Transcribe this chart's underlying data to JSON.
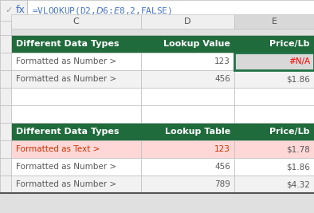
{
  "formula_bar_text": "=VLOOKUP(D2,$D$6:$E$8,2,FALSE)",
  "col_labels": [
    "C",
    "D",
    "E"
  ],
  "header_bg": "#206B3C",
  "header_fg": "#FFFFFF",
  "cell_bg_white": "#FFFFFF",
  "cell_bg_gray": "#F2F2F2",
  "selected_cell_bg": "#D8D8D8",
  "pink_bg": "#FFD7D7",
  "top_table": {
    "header": [
      "Different Data Types",
      "Lookup Value",
      "Price/Lb"
    ],
    "rows": [
      [
        "Formatted as Number >",
        "123",
        "#N/A"
      ],
      [
        "Formatted as Number >",
        "456",
        "$1.86"
      ]
    ],
    "row_bgs": [
      "#FFFFFF",
      "#F2F2F2"
    ],
    "na_color": "#FF0000",
    "na_cell_bg": "#D8D8D8",
    "normal_text": "#595959"
  },
  "bottom_table": {
    "header": [
      "Different Data Types",
      "Lookup Table",
      "Price/Lb"
    ],
    "rows": [
      [
        "Formatted as Text >",
        "123",
        "$1.78"
      ],
      [
        "Formatted as Number >",
        "456",
        "$1.86"
      ],
      [
        "Formatted as Number >",
        "789",
        "$4.32"
      ]
    ],
    "row_bgs": [
      "#FFD7D7",
      "#FFFFFF",
      "#F2F2F2"
    ],
    "text_colors_col0": [
      "#CC3300",
      "#595959",
      "#595959"
    ],
    "text_colors_col1": [
      "#CC3300",
      "#595959",
      "#595959"
    ],
    "normal_text": "#595959"
  },
  "grid_color": "#C0C0C0",
  "outer_bg": "#E0E0E0",
  "col_header_bg": "#EFEFEF",
  "selected_col_bg": "#D8D8D8",
  "formula_bar_bg": "#FFFFFF",
  "formula_color": "#4472C4",
  "fx_color": "#4472C4",
  "check_color": "#A0A0A0"
}
